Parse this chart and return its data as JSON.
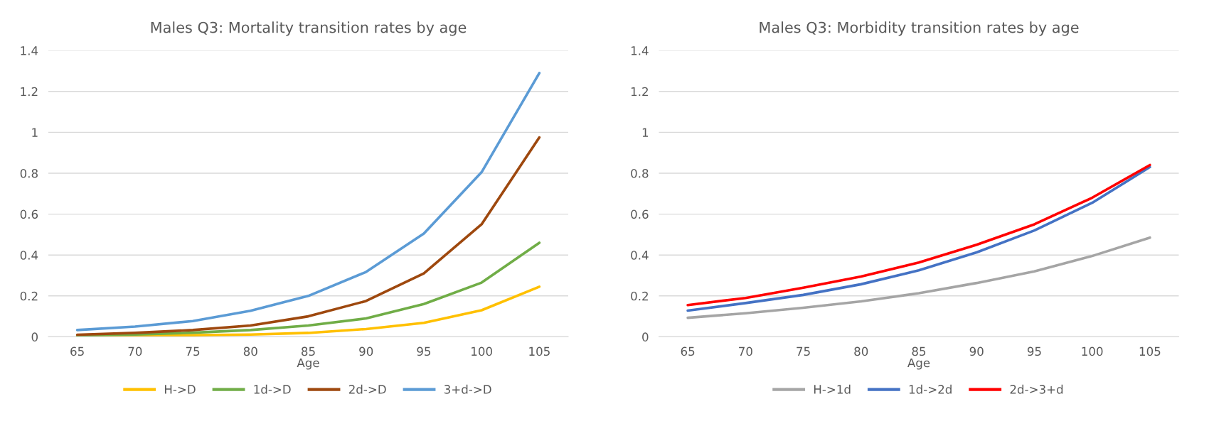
{
  "chart_data": [
    {
      "type": "line",
      "title": "Males Q3: Mortality transition rates by age",
      "xlabel": "Age",
      "categories": [
        "65",
        "70",
        "75",
        "80",
        "85",
        "90",
        "95",
        "100",
        "105"
      ],
      "ylim": [
        0,
        1.4
      ],
      "yticks": [
        0,
        0.2,
        0.4,
        0.6,
        0.8,
        1,
        1.2,
        1.4
      ],
      "grid": "y",
      "legend": "bottom",
      "marker": "none",
      "line_style": "solid",
      "series": [
        {
          "name": "H->D",
          "color": "#ffc000",
          "values": [
            0.003,
            0.005,
            0.008,
            0.011,
            0.019,
            0.038,
            0.068,
            0.13,
            0.245
          ]
        },
        {
          "name": "1d->D",
          "color": "#70ad47",
          "values": [
            0.007,
            0.011,
            0.02,
            0.033,
            0.055,
            0.09,
            0.16,
            0.265,
            0.46
          ]
        },
        {
          "name": "2d->D",
          "color": "#9e480e",
          "values": [
            0.01,
            0.019,
            0.033,
            0.055,
            0.1,
            0.175,
            0.31,
            0.55,
            0.975
          ]
        },
        {
          "name": "3+d->D",
          "color": "#5b9bd5",
          "values": [
            0.033,
            0.05,
            0.077,
            0.127,
            0.2,
            0.317,
            0.505,
            0.805,
            1.29
          ]
        }
      ]
    },
    {
      "type": "line",
      "title": "Males Q3: Morbidity transition rates by age",
      "xlabel": "Age",
      "categories": [
        "65",
        "70",
        "75",
        "80",
        "85",
        "90",
        "95",
        "100",
        "105"
      ],
      "ylim": [
        0,
        1.4
      ],
      "yticks": [
        0,
        0.2,
        0.4,
        0.6,
        0.8,
        1,
        1.2,
        1.4
      ],
      "grid": "y",
      "legend": "bottom",
      "marker": "none",
      "line_style": "solid",
      "series": [
        {
          "name": "H->1d",
          "color": "#a5a5a5",
          "values": [
            0.093,
            0.115,
            0.142,
            0.173,
            0.213,
            0.263,
            0.32,
            0.395,
            0.485
          ]
        },
        {
          "name": "1d->2d",
          "color": "#4472c4",
          "values": [
            0.128,
            0.165,
            0.205,
            0.257,
            0.325,
            0.413,
            0.52,
            0.655,
            0.83
          ]
        },
        {
          "name": "2d->3+d",
          "color": "#ff0000",
          "values": [
            0.155,
            0.19,
            0.24,
            0.295,
            0.363,
            0.45,
            0.55,
            0.68,
            0.84
          ]
        }
      ]
    }
  ]
}
